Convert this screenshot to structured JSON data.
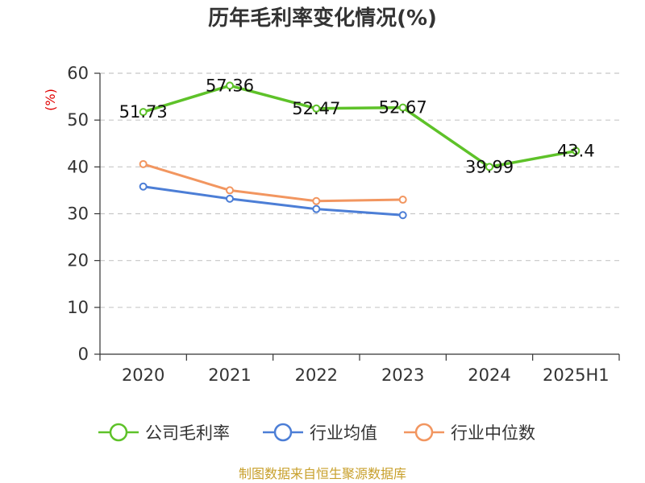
{
  "chart_data": {
    "type": "line",
    "title": "历年毛利率变化情况(%)",
    "ylabel": "(%)",
    "xlabel": "",
    "categories": [
      "2020",
      "2021",
      "2022",
      "2023",
      "2024",
      "2025H1"
    ],
    "ylim": [
      0,
      60
    ],
    "yticks": [
      0,
      10,
      20,
      30,
      40,
      50,
      60
    ],
    "grid": "horizontal-dashed",
    "legend_position": "bottom",
    "series": [
      {
        "name": "公司毛利率",
        "color": "#5ec229",
        "values": [
          51.73,
          57.36,
          52.47,
          52.67,
          39.99,
          43.4
        ],
        "labels": [
          "51.73",
          "57.36",
          "52.47",
          "52.67",
          "39.99",
          "43.4"
        ]
      },
      {
        "name": "行业均值",
        "color": "#4c7ed6",
        "values": [
          35.8,
          33.2,
          31.0,
          29.7,
          null,
          null
        ]
      },
      {
        "name": "行业中位数",
        "color": "#f29660",
        "values": [
          40.6,
          35.0,
          32.7,
          33.0,
          null,
          null
        ]
      }
    ]
  },
  "source": "制图数据来自恒生聚源数据库"
}
